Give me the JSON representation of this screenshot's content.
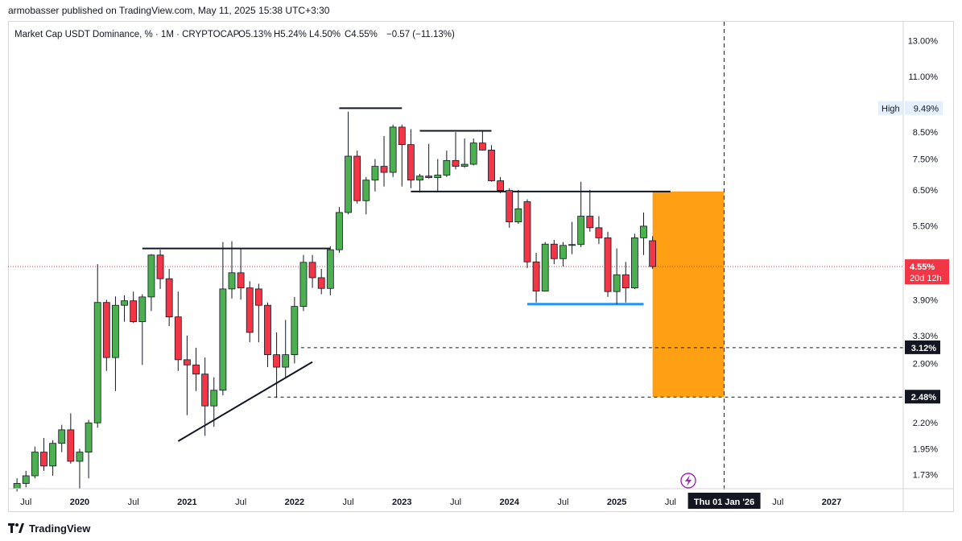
{
  "header": {
    "published": "armobasser published on TradingView.com, May 11, 2025 15:38 UTC+3:30"
  },
  "legend": {
    "symbol": "Market Cap USDT Dominance, % · 1M · CRYPTOCAP",
    "open": "O5.13%",
    "high": "H5.24%",
    "low": "L4.50%",
    "close": "C4.55%",
    "change": "−0.57 (−11.13%)"
  },
  "footer": {
    "brand": "TradingView"
  },
  "chart_data": {
    "type": "candlestick",
    "interval": "1M",
    "y_scale": "log",
    "ylim": [
      1.62,
      14.2
    ],
    "y_ticks": [
      {
        "value": 13.0,
        "label": "13.00%"
      },
      {
        "value": 11.0,
        "label": "11.00%"
      },
      {
        "value": 8.5,
        "label": "8.50%"
      },
      {
        "value": 7.5,
        "label": "7.50%"
      },
      {
        "value": 6.5,
        "label": "6.50%"
      },
      {
        "value": 5.5,
        "label": "5.50%"
      },
      {
        "value": 3.9,
        "label": "3.90%"
      },
      {
        "value": 3.3,
        "label": "3.30%"
      },
      {
        "value": 2.9,
        "label": "2.90%"
      },
      {
        "value": 2.2,
        "label": "2.20%"
      },
      {
        "value": 1.95,
        "label": "1.95%"
      },
      {
        "value": 1.73,
        "label": "1.73%"
      }
    ],
    "x_ticks": [
      {
        "date": "2019-07",
        "label": "Jul",
        "bold": false
      },
      {
        "date": "2020-01",
        "label": "2020",
        "bold": true
      },
      {
        "date": "2020-07",
        "label": "Jul",
        "bold": false
      },
      {
        "date": "2021-01",
        "label": "2021",
        "bold": true
      },
      {
        "date": "2021-07",
        "label": "Jul",
        "bold": false
      },
      {
        "date": "2022-01",
        "label": "2022",
        "bold": true
      },
      {
        "date": "2022-07",
        "label": "Jul",
        "bold": false
      },
      {
        "date": "2023-01",
        "label": "2023",
        "bold": true
      },
      {
        "date": "2023-07",
        "label": "Jul",
        "bold": false
      },
      {
        "date": "2024-01",
        "label": "2024",
        "bold": true
      },
      {
        "date": "2024-07",
        "label": "Jul",
        "bold": false
      },
      {
        "date": "2025-01",
        "label": "2025",
        "bold": true
      },
      {
        "date": "2025-07",
        "label": "Jul",
        "bold": false
      },
      {
        "date": "2026-07",
        "label": "Jul",
        "bold": false
      },
      {
        "date": "2027-01",
        "label": "2027",
        "bold": true
      }
    ],
    "x_range": [
      "2019-05",
      "2027-09"
    ],
    "colors": {
      "up": "#4caf50",
      "down": "#f23645",
      "wick": "#131722",
      "current": "#f23645",
      "zone": "#ff9800",
      "support": "#2196f3"
    },
    "candles": [
      [
        "2019-06",
        1.62,
        1.7,
        1.6,
        1.66
      ],
      [
        "2019-07",
        1.66,
        1.76,
        1.63,
        1.72
      ],
      [
        "2019-08",
        1.72,
        1.97,
        1.7,
        1.92
      ],
      [
        "2019-09",
        1.92,
        2.05,
        1.76,
        1.8
      ],
      [
        "2019-10",
        1.8,
        2.03,
        1.72,
        2.0
      ],
      [
        "2019-11",
        2.0,
        2.18,
        1.92,
        2.13
      ],
      [
        "2019-12",
        2.13,
        2.3,
        1.82,
        1.84
      ],
      [
        "2020-01",
        1.84,
        1.95,
        1.62,
        1.92
      ],
      [
        "2020-02",
        1.92,
        2.23,
        1.7,
        2.2
      ],
      [
        "2020-03",
        2.2,
        4.6,
        2.15,
        3.85
      ],
      [
        "2020-04",
        3.85,
        3.9,
        2.8,
        2.98
      ],
      [
        "2020-05",
        2.98,
        3.96,
        2.55,
        3.8
      ],
      [
        "2020-06",
        3.8,
        3.98,
        3.52,
        3.88
      ],
      [
        "2020-07",
        3.88,
        4.05,
        3.5,
        3.52
      ],
      [
        "2020-08",
        3.52,
        4.0,
        2.88,
        3.95
      ],
      [
        "2020-09",
        3.95,
        4.82,
        3.7,
        4.8
      ],
      [
        "2020-10",
        4.8,
        4.92,
        4.1,
        4.3
      ],
      [
        "2020-11",
        4.3,
        4.5,
        3.45,
        3.6
      ],
      [
        "2020-12",
        3.6,
        4.05,
        2.8,
        2.95
      ],
      [
        "2021-01",
        2.95,
        3.3,
        2.28,
        2.88
      ],
      [
        "2021-02",
        2.88,
        3.12,
        2.55,
        2.76
      ],
      [
        "2021-03",
        2.76,
        2.98,
        2.07,
        2.38
      ],
      [
        "2021-04",
        2.38,
        2.72,
        2.16,
        2.56
      ],
      [
        "2021-05",
        2.56,
        5.1,
        2.5,
        4.1
      ],
      [
        "2021-06",
        4.1,
        5.12,
        3.92,
        4.42
      ],
      [
        "2021-07",
        4.42,
        4.95,
        3.9,
        4.12
      ],
      [
        "2021-08",
        4.12,
        4.25,
        3.2,
        3.35
      ],
      [
        "2021-09",
        4.1,
        4.2,
        3.2,
        3.8
      ],
      [
        "2021-10",
        3.8,
        3.85,
        2.85,
        3.02
      ],
      [
        "2021-11",
        3.02,
        3.35,
        2.47,
        2.85
      ],
      [
        "2021-12",
        2.85,
        3.55,
        2.7,
        3.02
      ],
      [
        "2022-01",
        3.02,
        3.95,
        2.9,
        3.78
      ],
      [
        "2022-02",
        3.78,
        4.8,
        3.7,
        4.64
      ],
      [
        "2022-03",
        4.64,
        4.8,
        4.12,
        4.32
      ],
      [
        "2022-04",
        4.32,
        4.5,
        4.0,
        4.11
      ],
      [
        "2022-05",
        4.11,
        5.0,
        3.98,
        4.92
      ],
      [
        "2022-06",
        4.92,
        6.0,
        4.85,
        5.85
      ],
      [
        "2022-07",
        5.85,
        9.35,
        5.8,
        7.6
      ],
      [
        "2022-08",
        7.6,
        7.8,
        6.1,
        6.18
      ],
      [
        "2022-09",
        6.18,
        6.9,
        5.8,
        6.8
      ],
      [
        "2022-10",
        6.8,
        7.5,
        6.45,
        7.25
      ],
      [
        "2022-11",
        7.25,
        8.35,
        6.6,
        7.05
      ],
      [
        "2022-12",
        7.05,
        8.8,
        6.9,
        8.7
      ],
      [
        "2023-01",
        8.7,
        8.8,
        6.6,
        8.02
      ],
      [
        "2023-02",
        8.02,
        8.62,
        6.55,
        6.8
      ],
      [
        "2023-03",
        6.8,
        7.0,
        6.42,
        6.93
      ],
      [
        "2023-04",
        6.93,
        8.05,
        6.85,
        6.88
      ],
      [
        "2023-05",
        6.88,
        7.5,
        6.44,
        6.96
      ],
      [
        "2023-06",
        6.96,
        7.8,
        6.9,
        7.45
      ],
      [
        "2023-07",
        7.45,
        8.5,
        7.15,
        7.25
      ],
      [
        "2023-08",
        7.25,
        8.25,
        7.2,
        7.32
      ],
      [
        "2023-09",
        7.32,
        8.25,
        7.28,
        8.08
      ],
      [
        "2023-10",
        8.08,
        8.55,
        7.8,
        7.82
      ],
      [
        "2023-11",
        7.82,
        8.0,
        6.75,
        6.78
      ],
      [
        "2023-12",
        6.78,
        6.9,
        6.4,
        6.48
      ],
      [
        "2024-01",
        6.48,
        6.55,
        5.45,
        5.6
      ],
      [
        "2024-02",
        5.6,
        6.5,
        5.55,
        5.95
      ],
      [
        "2024-03",
        6.15,
        6.22,
        4.52,
        4.65
      ],
      [
        "2024-04",
        4.65,
        4.85,
        3.85,
        4.06
      ],
      [
        "2024-05",
        4.06,
        5.1,
        4.05,
        5.05
      ],
      [
        "2024-06",
        5.05,
        5.15,
        4.6,
        4.72
      ],
      [
        "2024-07",
        4.72,
        5.1,
        4.55,
        5.02
      ],
      [
        "2024-08",
        5.02,
        5.6,
        4.82,
        5.04
      ],
      [
        "2024-09",
        5.04,
        6.75,
        4.98,
        5.75
      ],
      [
        "2024-10",
        5.75,
        6.5,
        5.35,
        5.45
      ],
      [
        "2024-11",
        5.45,
        5.75,
        5.05,
        5.2
      ],
      [
        "2024-12",
        5.2,
        5.35,
        3.95,
        4.05
      ],
      [
        "2025-01",
        4.05,
        4.95,
        3.82,
        4.38
      ],
      [
        "2025-02",
        4.38,
        4.65,
        3.85,
        4.12
      ],
      [
        "2025-03",
        4.12,
        5.3,
        4.1,
        5.2
      ],
      [
        "2025-04",
        5.2,
        5.85,
        4.8,
        5.49
      ],
      [
        "2025-05",
        5.13,
        5.24,
        4.5,
        4.55
      ]
    ],
    "current_value": {
      "value": 4.55,
      "label": "4.55%",
      "countdown": "20d 12h"
    },
    "high_marker": {
      "value": 9.49,
      "label": "9.49%",
      "tag": "High"
    },
    "targets": [
      {
        "value": 3.12,
        "label": "3.12%",
        "from": "2022-01"
      },
      {
        "value": 2.48,
        "label": "2.48%",
        "from": "2021-10"
      }
    ],
    "projection_zone": {
      "from": "2025-05",
      "to": "2026-01",
      "top": 6.45,
      "bottom": 2.48
    },
    "vertical_marker": {
      "date": "2026-01",
      "label": "Thu 01 Jan '26"
    },
    "drawings": [
      {
        "kind": "resistance",
        "from": [
          "2020-08",
          4.95
        ],
        "to": [
          "2022-05",
          4.95
        ]
      },
      {
        "kind": "top",
        "from": [
          "2022-06",
          9.5
        ],
        "to": [
          "2023-01",
          9.5
        ]
      },
      {
        "kind": "top",
        "from": [
          "2023-03",
          8.55
        ],
        "to": [
          "2023-11",
          8.55
        ]
      },
      {
        "kind": "neckline",
        "from": [
          "2023-02",
          6.45
        ],
        "to": [
          "2025-07",
          6.45
        ]
      },
      {
        "kind": "support",
        "from": [
          "2024-03",
          3.82
        ],
        "to": [
          "2025-04",
          3.82
        ]
      },
      {
        "kind": "trendline",
        "from": [
          "2020-12",
          2.02
        ],
        "to": [
          "2022-03",
          2.92
        ]
      }
    ]
  }
}
